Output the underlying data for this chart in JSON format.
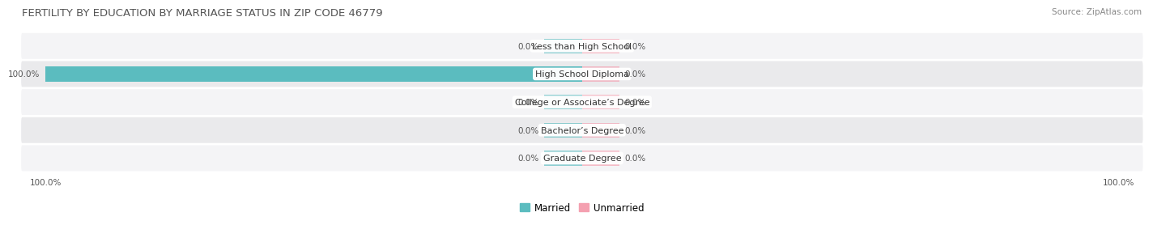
{
  "title": "FERTILITY BY EDUCATION BY MARRIAGE STATUS IN ZIP CODE 46779",
  "source": "Source: ZipAtlas.com",
  "categories": [
    "Less than High School",
    "High School Diploma",
    "College or Associate’s Degree",
    "Bachelor’s Degree",
    "Graduate Degree"
  ],
  "married_values": [
    0.0,
    100.0,
    0.0,
    0.0,
    0.0
  ],
  "unmarried_values": [
    0.0,
    0.0,
    0.0,
    0.0,
    0.0
  ],
  "married_color": "#5bbcbf",
  "unmarried_color": "#f4a0b0",
  "row_colors": [
    "#f4f4f6",
    "#eaeaec"
  ],
  "married_label": "Married",
  "unmarried_label": "Unmarried",
  "bg_color": "#ffffff",
  "title_color": "#555555",
  "source_color": "#888888",
  "label_color": "#555555",
  "stub_size": 7.0,
  "xlim": 105,
  "bar_height": 0.68,
  "title_fontsize": 9.5,
  "source_fontsize": 7.5,
  "value_fontsize": 7.5,
  "cat_fontsize": 8.0,
  "legend_fontsize": 8.5
}
